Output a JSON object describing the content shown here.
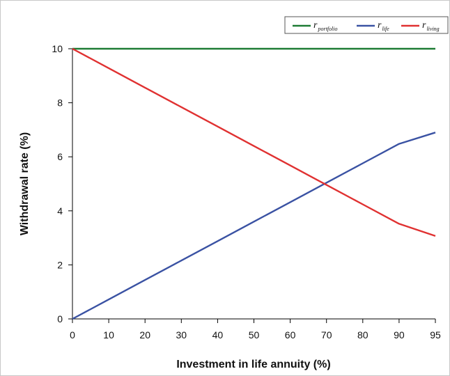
{
  "chart_data": {
    "type": "line",
    "xlabel": "Investment in life annuity (%)",
    "ylabel": "Withdrawal rate (%)",
    "x": [
      0,
      10,
      20,
      30,
      40,
      50,
      60,
      70,
      80,
      90,
      95
    ],
    "x_tick_labels": [
      "0",
      "10",
      "20",
      "30",
      "40",
      "50",
      "60",
      "70",
      "80",
      "90",
      "95"
    ],
    "y_ticks": [
      0,
      2,
      4,
      6,
      8,
      10
    ],
    "y_tick_labels": [
      "0",
      "2",
      "4",
      "6",
      "8",
      "10"
    ],
    "ylim": [
      0,
      10
    ],
    "grid": false,
    "legend_position": "top-right",
    "series": [
      {
        "name": "r",
        "subscript": "portfolio",
        "color": "#1e7b34",
        "values": [
          10,
          10,
          10,
          10,
          10,
          10,
          10,
          10,
          10,
          10,
          10
        ]
      },
      {
        "name": "r",
        "subscript": "life",
        "color": "#3a52a3",
        "values": [
          0,
          0.72,
          1.44,
          2.16,
          2.88,
          3.6,
          4.32,
          5.04,
          5.76,
          6.48,
          6.9
        ]
      },
      {
        "name": "r",
        "subscript": "living",
        "color": "#e03131",
        "values": [
          10,
          9.28,
          8.56,
          7.84,
          7.12,
          6.4,
          5.68,
          4.96,
          4.24,
          3.52,
          3.07
        ]
      }
    ]
  }
}
